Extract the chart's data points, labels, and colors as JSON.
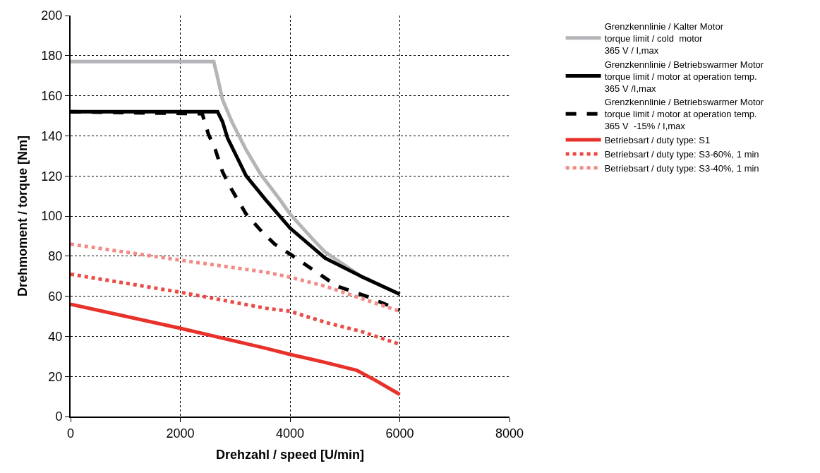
{
  "chart_data": {
    "type": "line",
    "xlabel": "Drehzahl / speed [U/min]",
    "ylabel": "Drehmoment / torque [Nm]",
    "xlim": [
      0,
      8000
    ],
    "xticks": [
      0,
      2000,
      4000,
      6000,
      8000
    ],
    "ylim": [
      0,
      200
    ],
    "yticks": [
      0,
      20,
      40,
      60,
      80,
      100,
      120,
      140,
      160,
      180,
      200
    ],
    "grid": true,
    "legend": "right",
    "marker": "none",
    "series": [
      {
        "name": "Grenzkennlinie / Kalter Motor\ntorque limit / cold  motor\n365 V / I,max",
        "color": "#b4b5b8",
        "line_style": "solid",
        "x": [
          0,
          2610,
          2680,
          2770,
          2940,
          3200,
          3460,
          3820,
          4000,
          4430,
          4640,
          5290,
          6000
        ],
        "values": [
          177,
          177,
          169,
          158,
          147,
          133,
          121,
          108,
          101,
          88,
          82,
          70,
          61
        ]
      },
      {
        "name": "Grenzkennlinie / Betriebswarmer Motor\ntorque limit / motor at operation temp.\n365 V /I,max",
        "color": "#000000",
        "line_style": "solid",
        "x": [
          0,
          2680,
          2770,
          2860,
          3200,
          3560,
          4000,
          4640,
          5290,
          6000
        ],
        "values": [
          152,
          152,
          147,
          139,
          120,
          108,
          94,
          79,
          70,
          61
        ]
      },
      {
        "name": "Grenzkennlinie / Betriebswarmer Motor\ntorque limit / motor at operation temp.\n365 V  -15% / I,max",
        "color": "#000000",
        "line_style": "dashed",
        "x": [
          0,
          2400,
          2510,
          2640,
          2770,
          2940,
          3200,
          3460,
          3720,
          4000,
          4430,
          4860,
          5390,
          6000
        ],
        "values": [
          152,
          151,
          141,
          133,
          122,
          113,
          101,
          93,
          86,
          81,
          73,
          65,
          60,
          53
        ]
      },
      {
        "name": "Betriebsart / duty type: S1",
        "color": "#e8312a",
        "line_style": "solid",
        "x": [
          0,
          2000,
          3560,
          4000,
          4640,
          5220,
          5560,
          6000
        ],
        "values": [
          56,
          44,
          34,
          31,
          27,
          23,
          18,
          11
        ]
      },
      {
        "name": "Betriebsart / duty type: S3-60%, 1 min",
        "color": "#ec4a44",
        "line_style": "dotted",
        "x": [
          0,
          2000,
          3560,
          4000,
          4640,
          5290,
          6000
        ],
        "values": [
          71,
          62,
          54,
          52.5,
          47,
          42.5,
          36
        ]
      },
      {
        "name": "Betriebsart / duty type: S3-40%, 1 min",
        "color": "#f28a86",
        "line_style": "dotted",
        "x": [
          0,
          2000,
          3560,
          4000,
          4640,
          5290,
          6000
        ],
        "values": [
          86,
          78,
          72,
          69.5,
          65,
          59,
          52.5
        ]
      }
    ]
  }
}
